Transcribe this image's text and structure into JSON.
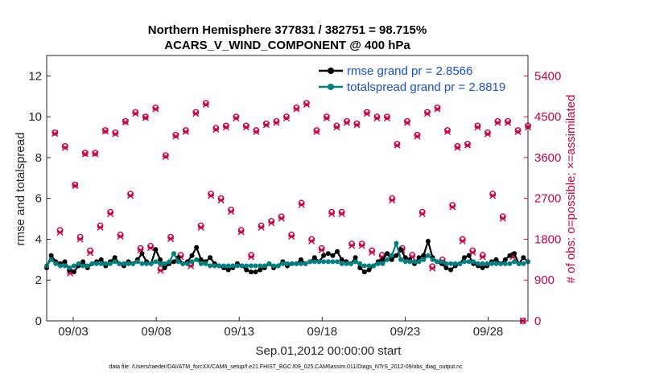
{
  "chart_data": {
    "type": "line",
    "title": "Northern Hemisphere 377831 / 382751 = 98.715%",
    "subtitle": "ACARS_V_WIND_COMPONENT @ 400 hPa",
    "xlabel": "Sep.01,2012 00:00:00 start",
    "ylabel_left": "rmse and totalspread",
    "ylabel_right": "# of obs: o=possible; ×=assimilated",
    "footer": "data file: /Users/raeder/DAI/ATM_forcXX/CAM6_setup/f.e21.FHIST_BGC.f09_025.CAM6assim.011/Diags_NTrS_2012-09/obs_diag_output.nc",
    "x_ticks": [
      "09/03",
      "09/08",
      "09/13",
      "09/18",
      "09/23",
      "09/28"
    ],
    "x_tick_days": [
      3,
      8,
      13,
      18,
      23,
      28
    ],
    "xlim": [
      1.4,
      30.4
    ],
    "ylim_left": [
      0,
      13
    ],
    "y_ticks_left": [
      "0",
      "2",
      "4",
      "6",
      "8",
      "10",
      "12"
    ],
    "ylim_right": [
      0,
      5850
    ],
    "y_ticks_right": [
      "0",
      "900",
      "1800",
      "2700",
      "3600",
      "4500",
      "5400"
    ],
    "legend": [
      "rmse grand pr = 2.8566",
      "totalspread grand pr = 2.8819"
    ],
    "colors": {
      "rmse": "#000000",
      "spread": "#008080",
      "obs": "#cc0044",
      "legend_text": "#1a4fd6"
    },
    "series": [
      {
        "name": "rmse",
        "values": [
          2.6,
          3.2,
          2.9,
          2.8,
          2.9,
          2.5,
          2.4,
          2.7,
          2.9,
          2.6,
          2.8,
          2.9,
          3.0,
          2.7,
          2.9,
          3.1,
          2.8,
          2.7,
          2.9,
          2.8,
          3.0,
          3.3,
          2.9,
          2.8,
          3.5,
          3.0,
          2.6,
          2.8,
          2.9,
          3.1,
          2.8,
          2.9,
          3.2,
          3.6,
          3.0,
          2.9,
          3.1,
          2.8,
          2.7,
          2.6,
          2.5,
          2.6,
          2.8,
          2.7,
          2.5,
          2.4,
          2.4,
          2.5,
          2.6,
          2.8,
          2.6,
          2.7,
          2.9,
          2.7,
          2.8,
          2.8,
          3.0,
          2.8,
          2.9,
          3.1,
          2.9,
          3.2,
          3.3,
          3.2,
          3.4,
          3.0,
          2.9,
          2.8,
          3.1,
          2.6,
          2.4,
          2.5,
          2.7,
          2.9,
          3.0,
          3.3,
          3.0,
          3.2,
          3.5,
          3.1,
          3.0,
          2.8,
          3.1,
          3.2,
          3.9,
          3.1,
          2.9,
          2.8,
          2.6,
          2.5,
          2.7,
          2.8,
          3.1,
          3.2,
          2.8,
          2.7,
          2.6,
          2.7,
          2.9,
          3.0,
          2.8,
          3.0,
          3.2,
          3.3,
          2.8,
          3.1,
          2.9
        ]
      },
      {
        "name": "totalspread",
        "values": [
          2.7,
          3.0,
          2.8,
          2.7,
          2.7,
          2.6,
          2.7,
          2.8,
          2.7,
          2.7,
          2.8,
          2.8,
          2.8,
          2.8,
          2.8,
          2.9,
          2.8,
          2.8,
          2.8,
          2.8,
          2.9,
          2.8,
          2.8,
          2.8,
          2.9,
          2.8,
          2.8,
          2.9,
          3.3,
          2.9,
          2.8,
          2.8,
          2.9,
          3.0,
          2.8,
          2.8,
          2.7,
          2.7,
          2.7,
          2.7,
          2.7,
          2.7,
          2.7,
          2.7,
          2.7,
          2.7,
          2.7,
          2.7,
          2.7,
          2.8,
          2.7,
          2.7,
          2.8,
          2.8,
          2.8,
          2.8,
          2.8,
          2.8,
          2.9,
          2.9,
          2.9,
          2.9,
          2.9,
          2.9,
          2.9,
          2.8,
          2.8,
          2.8,
          2.9,
          2.8,
          2.7,
          2.7,
          2.7,
          2.8,
          2.8,
          3.0,
          3.2,
          3.8,
          3.0,
          2.9,
          2.9,
          2.9,
          2.9,
          3.0,
          3.2,
          3.0,
          2.9,
          2.9,
          2.8,
          2.8,
          2.8,
          2.8,
          2.9,
          2.9,
          2.9,
          2.8,
          2.8,
          2.8,
          2.8,
          2.8,
          2.8,
          2.8,
          2.8,
          2.9,
          2.8,
          2.8,
          2.9
        ]
      },
      {
        "name": "possible",
        "values": [
          4150,
          2000,
          3850,
          1100,
          3000,
          1850,
          3700,
          1550,
          3700,
          2100,
          4200,
          2400,
          4150,
          1900,
          4400,
          2800,
          4600,
          1600,
          4500,
          1650,
          4700,
          1150,
          3650,
          1850,
          4100,
          1450,
          4200,
          1250,
          4600,
          2100,
          4800,
          2800,
          4250,
          2700,
          4300,
          2450,
          4500,
          2000,
          4300,
          1450,
          4200,
          2100,
          4350,
          2200,
          4400,
          2300,
          4500,
          1900,
          4700,
          2600,
          4800,
          1800,
          4200,
          1600,
          4500,
          2400,
          4300,
          2400,
          4400,
          1700,
          4350,
          1700,
          4600,
          1550,
          4500,
          1450,
          4500,
          2700,
          3900,
          1600,
          4400,
          1450,
          4100,
          2400,
          4600,
          1200,
          4700,
          1350,
          4200,
          2550,
          3850,
          1800,
          3900,
          1550,
          4300,
          1450,
          4150,
          2800,
          4400,
          2300,
          4400,
          1450,
          4200,
          0,
          4300
        ]
      },
      {
        "name": "assimilated",
        "values": [
          4130,
          1950,
          3820,
          1050,
          2980,
          1800,
          3680,
          1500,
          3680,
          2060,
          4180,
          2360,
          4120,
          1860,
          4380,
          2760,
          4570,
          1560,
          4480,
          1610,
          4670,
          1110,
          3620,
          1810,
          4070,
          1410,
          4170,
          1210,
          4570,
          2060,
          4770,
          2760,
          4220,
          2660,
          4270,
          2410,
          4470,
          1960,
          4270,
          1410,
          4170,
          2060,
          4320,
          2160,
          4370,
          2260,
          4470,
          1860,
          4670,
          2560,
          4770,
          1760,
          4170,
          1560,
          4470,
          2360,
          4270,
          2360,
          4370,
          1660,
          4320,
          1660,
          4570,
          1510,
          4470,
          1410,
          4470,
          2660,
          3870,
          1560,
          4370,
          1410,
          4070,
          2360,
          4570,
          1160,
          4670,
          1310,
          4170,
          2510,
          3820,
          1760,
          3870,
          1510,
          4270,
          1410,
          4120,
          2760,
          4370,
          2260,
          4370,
          1410,
          4170,
          0,
          4270
        ]
      }
    ]
  }
}
